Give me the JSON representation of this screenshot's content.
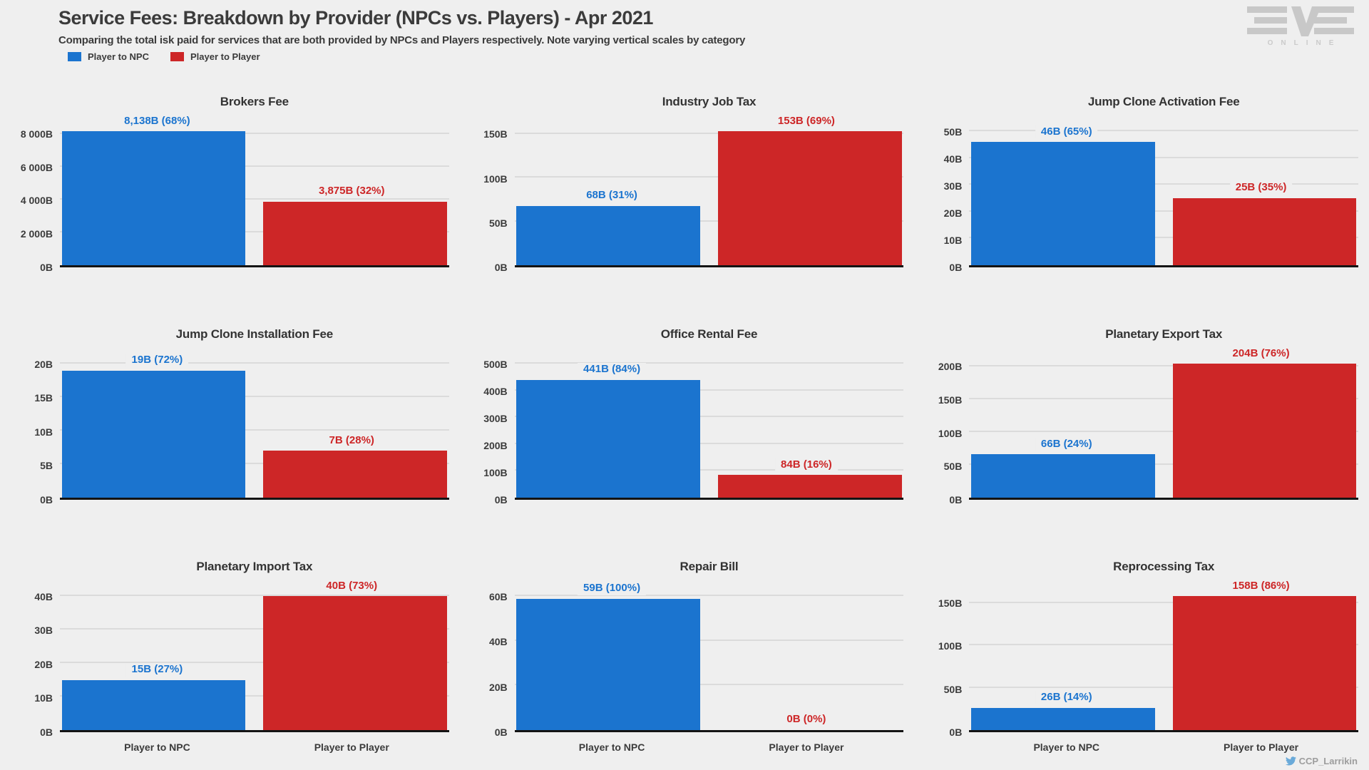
{
  "header": {
    "title": "Service Fees: Breakdown by Provider (NPCs vs. Players) - Apr 2021",
    "subtitle": "Comparing the total isk paid for services that are both provided by NPCs and Players respectively. Note varying vertical scales by category",
    "brand": {
      "name": "EVE",
      "online_text": "ONLINE"
    }
  },
  "legend": [
    {
      "label": "Player to NPC",
      "color": "#1b74cf"
    },
    {
      "label": "Player to Player",
      "color": "#cd2627"
    }
  ],
  "colors": {
    "blue_series": "#1b74cf",
    "red_series": "#cd2627",
    "background": "#efefef",
    "gridline": "#dbdbdb",
    "axis_line": "#141414",
    "text": "#3b3b3b",
    "logo_gray": "#c8c8c8",
    "twitter_blue": "#6aaad9"
  },
  "categories": [
    "Player to NPC",
    "Player to Player"
  ],
  "footer": {
    "credit": "CCP_Larrikin",
    "icon": "twitter-icon"
  },
  "chart_data": [
    {
      "type": "bar",
      "title": "Brokers Fee",
      "categories": [
        "Player to NPC",
        "Player to Player"
      ],
      "values": [
        8138,
        3875
      ],
      "labels": [
        "8,138B (68%)",
        "3,875B (32%)"
      ],
      "yticks": [
        0,
        2000,
        4000,
        6000,
        8000
      ],
      "ytick_labels": [
        "0B",
        "2 000B",
        "4 000B",
        "6 000B",
        "8 000B"
      ],
      "ylim": [
        0,
        8545
      ],
      "show_x_labels": false
    },
    {
      "type": "bar",
      "title": "Industry Job Tax",
      "categories": [
        "Player to NPC",
        "Player to Player"
      ],
      "values": [
        68,
        153
      ],
      "labels": [
        "68B (31%)",
        "153B (69%)"
      ],
      "yticks": [
        0,
        50,
        100,
        150
      ],
      "ytick_labels": [
        "0B",
        "50B",
        "100B",
        "150B"
      ],
      "ylim": [
        0,
        160.7
      ],
      "show_x_labels": false
    },
    {
      "type": "bar",
      "title": "Jump Clone Activation Fee",
      "categories": [
        "Player to NPC",
        "Player to Player"
      ],
      "values": [
        46,
        25
      ],
      "labels": [
        "46B (65%)",
        "25B (35%)"
      ],
      "yticks": [
        0,
        10,
        20,
        30,
        40,
        50
      ],
      "ytick_labels": [
        "0B",
        "10B",
        "20B",
        "30B",
        "40B",
        "50B"
      ],
      "ylim": [
        0,
        52.5
      ],
      "show_x_labels": false
    },
    {
      "type": "bar",
      "title": "Jump Clone Installation Fee",
      "categories": [
        "Player to NPC",
        "Player to Player"
      ],
      "values": [
        19,
        7
      ],
      "labels": [
        "19B (72%)",
        "7B (28%)"
      ],
      "yticks": [
        0,
        5,
        10,
        15,
        20
      ],
      "ytick_labels": [
        "0B",
        "5B",
        "10B",
        "15B",
        "20B"
      ],
      "ylim": [
        0,
        21
      ],
      "show_x_labels": false
    },
    {
      "type": "bar",
      "title": "Office Rental Fee",
      "categories": [
        "Player to NPC",
        "Player to Player"
      ],
      "values": [
        441,
        84
      ],
      "labels": [
        "441B (84%)",
        "84B (16%)"
      ],
      "yticks": [
        0,
        100,
        200,
        300,
        400,
        500
      ],
      "ytick_labels": [
        "0B",
        "100B",
        "200B",
        "300B",
        "400B",
        "500B"
      ],
      "ylim": [
        0,
        525
      ],
      "show_x_labels": false
    },
    {
      "type": "bar",
      "title": "Planetary Export Tax",
      "categories": [
        "Player to NPC",
        "Player to Player"
      ],
      "values": [
        66,
        204
      ],
      "labels": [
        "66B (24%)",
        "204B (76%)"
      ],
      "yticks": [
        0,
        50,
        100,
        150,
        200
      ],
      "ytick_labels": [
        "0B",
        "50B",
        "100B",
        "150B",
        "200B"
      ],
      "ylim": [
        0,
        214.2
      ],
      "show_x_labels": false
    },
    {
      "type": "bar",
      "title": "Planetary Import Tax",
      "categories": [
        "Player to NPC",
        "Player to Player"
      ],
      "values": [
        15,
        40
      ],
      "labels": [
        "15B (27%)",
        "40B (73%)"
      ],
      "yticks": [
        0,
        10,
        20,
        30,
        40
      ],
      "ytick_labels": [
        "0B",
        "10B",
        "20B",
        "30B",
        "40B"
      ],
      "ylim": [
        0,
        42
      ],
      "show_x_labels": true
    },
    {
      "type": "bar",
      "title": "Repair Bill",
      "categories": [
        "Player to NPC",
        "Player to Player"
      ],
      "values": [
        59,
        0
      ],
      "labels": [
        "59B (100%)",
        "0B (0%)"
      ],
      "yticks": [
        0,
        20,
        40,
        60
      ],
      "ytick_labels": [
        "0B",
        "20B",
        "40B",
        "60B"
      ],
      "ylim": [
        0,
        63
      ],
      "show_x_labels": true
    },
    {
      "type": "bar",
      "title": "Reprocessing Tax",
      "categories": [
        "Player to NPC",
        "Player to Player"
      ],
      "values": [
        26,
        158
      ],
      "labels": [
        "26B (14%)",
        "158B (86%)"
      ],
      "yticks": [
        0,
        50,
        100,
        150
      ],
      "ytick_labels": [
        "0B",
        "50B",
        "100B",
        "150B"
      ],
      "ylim": [
        0,
        165.9
      ],
      "show_x_labels": true
    }
  ]
}
